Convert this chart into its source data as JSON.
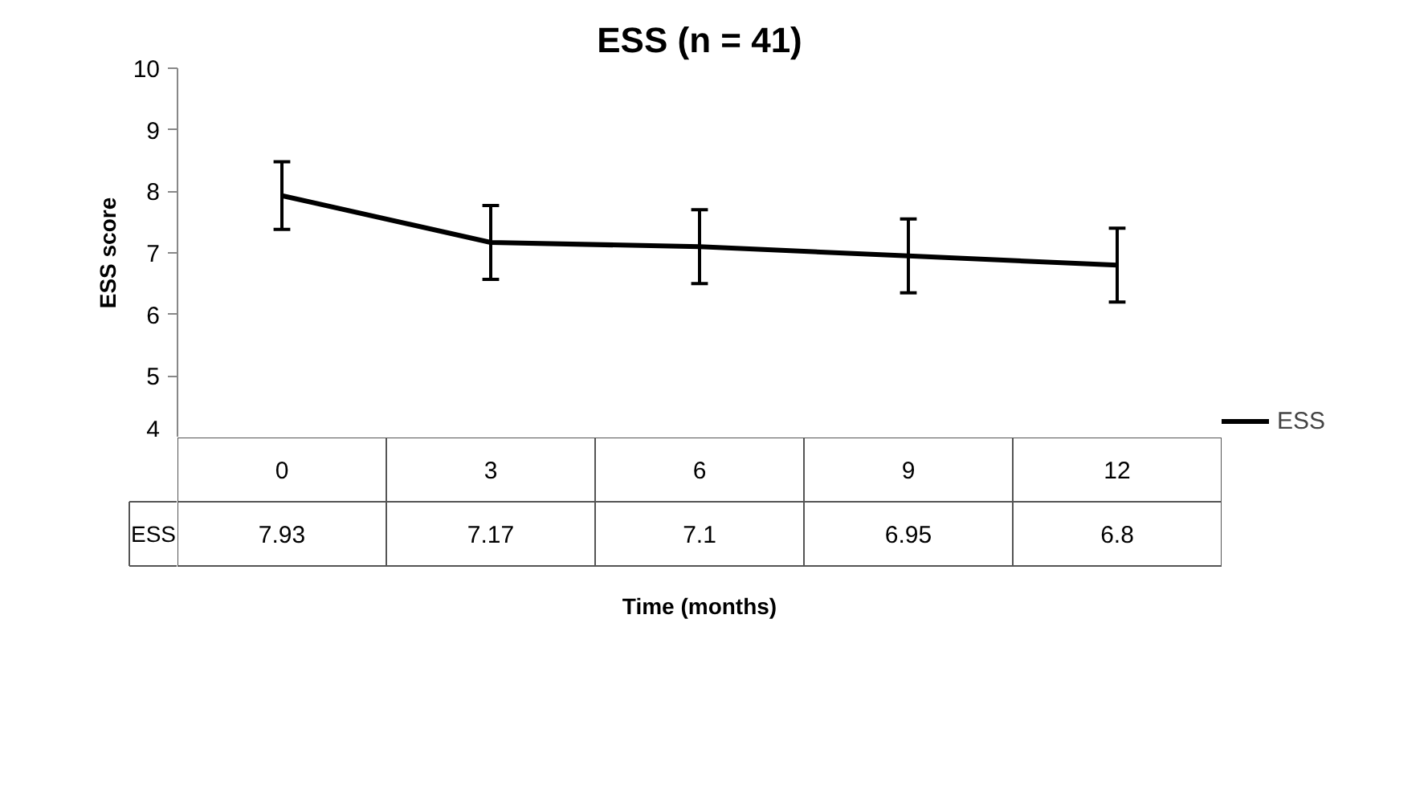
{
  "chart_data": {
    "type": "line",
    "title": "ESS (n = 41)",
    "xlabel": "Time (months)",
    "ylabel": "ESS score",
    "categories": [
      "0",
      "3",
      "6",
      "9",
      "12"
    ],
    "series": [
      {
        "name": "ESS",
        "color": "#000000",
        "values": [
          7.93,
          7.17,
          7.1,
          6.95,
          6.8
        ],
        "errors": [
          0.55,
          0.6,
          0.6,
          0.6,
          0.6
        ]
      }
    ],
    "ylim": [
      4,
      10
    ],
    "yticks": [
      4,
      5,
      6,
      7,
      8,
      9,
      10
    ],
    "grid": false,
    "legend": "right",
    "marker": "none",
    "line_style": "solid",
    "data_labels": true
  }
}
